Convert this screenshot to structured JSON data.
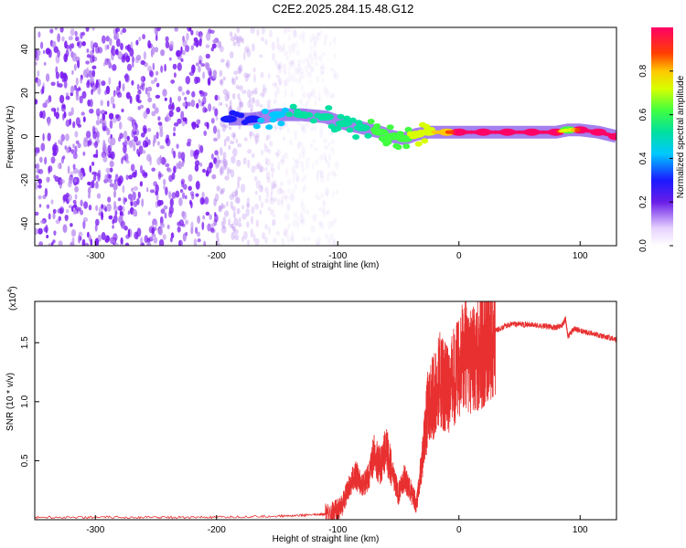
{
  "title": "C2E2.2025.284.15.48.G12",
  "colors": {
    "top_series": "#7a1cf0",
    "bottom_series": "#e83030",
    "frame": "#000000"
  },
  "chart_data": [
    {
      "type": "heatmap",
      "xlabel": "Height of straight line (km)",
      "ylabel": "Frequency (Hz)",
      "xlim": [
        -350,
        130
      ],
      "ylim": [
        -50,
        50
      ],
      "x_ticks": [
        -300,
        -200,
        -100,
        0,
        100
      ],
      "x_tick_labels": [
        "-300",
        "-200",
        "-100",
        "0",
        "100"
      ],
      "y_ticks": [
        -40,
        -20,
        0,
        20,
        40
      ],
      "y_tick_labels": [
        "-40",
        "-20",
        "0",
        "20",
        "40"
      ],
      "colorbar": {
        "label": "Normalized spectral amplitude",
        "range": [
          0,
          1
        ],
        "ticks": [
          0.0,
          0.2,
          0.4,
          0.6,
          0.8
        ],
        "tick_labels": [
          "0.0",
          "0.2",
          "0.4",
          "0.6",
          "0.8"
        ]
      },
      "ridge": {
        "x": [
          -190,
          -170,
          -150,
          -130,
          -110,
          -95,
          -80,
          -65,
          -55,
          -45,
          -35,
          -25,
          -10,
          0,
          20,
          40,
          60,
          80,
          90,
          100,
          115,
          130
        ],
        "freq": [
          8,
          8,
          10,
          10,
          9,
          6,
          4,
          2,
          0,
          -1,
          1,
          2,
          2,
          2,
          2,
          2,
          2,
          2,
          3,
          3,
          2,
          0
        ],
        "amplitude": [
          0.25,
          0.3,
          0.4,
          0.45,
          0.45,
          0.5,
          0.5,
          0.55,
          0.55,
          0.6,
          0.65,
          0.7,
          0.8,
          0.9,
          0.95,
          0.95,
          0.95,
          0.95,
          0.6,
          0.9,
          0.95,
          0.9
        ]
      },
      "noise_region_x": [
        -350,
        -120
      ]
    },
    {
      "type": "line",
      "xlabel": "Height of straight line (km)",
      "ylabel": "SNR (10 * v/v)",
      "y_exponent_label": "(x10",
      "y_exponent_power": "4",
      "y_exponent_close": ")",
      "xlim": [
        -350,
        130
      ],
      "ylim": [
        0,
        1.85
      ],
      "x_ticks": [
        -300,
        -200,
        -100,
        0,
        100
      ],
      "x_tick_labels": [
        "-300",
        "-200",
        "-100",
        "0",
        "100"
      ],
      "y_ticks": [
        0.5,
        1.0,
        1.5
      ],
      "y_tick_labels": [
        "0.5",
        "1.0",
        "1.5"
      ],
      "series": [
        {
          "x": [
            -350,
            -300,
            -250,
            -200,
            -150,
            -120,
            -105,
            -100,
            -95,
            -90,
            -85,
            -80,
            -75,
            -70,
            -65,
            -60,
            -55,
            -50,
            -45,
            -40,
            -35,
            -30,
            -25,
            -20,
            -15,
            -10,
            -5,
            0,
            5,
            10,
            15,
            20,
            25,
            30,
            40,
            50,
            60,
            70,
            80,
            85,
            88,
            90,
            95,
            100,
            110,
            120,
            130
          ],
          "y": [
            0.02,
            0.02,
            0.02,
            0.02,
            0.03,
            0.04,
            0.05,
            0.08,
            0.15,
            0.3,
            0.38,
            0.28,
            0.35,
            0.55,
            0.45,
            0.6,
            0.4,
            0.22,
            0.35,
            0.25,
            0.12,
            0.55,
            1.0,
            1.05,
            1.2,
            1.1,
            1.2,
            1.3,
            1.45,
            1.35,
            1.4,
            1.45,
            1.55,
            1.6,
            1.65,
            1.66,
            1.65,
            1.64,
            1.63,
            1.65,
            1.7,
            1.55,
            1.62,
            1.6,
            1.58,
            1.55,
            1.53
          ]
        }
      ]
    }
  ]
}
